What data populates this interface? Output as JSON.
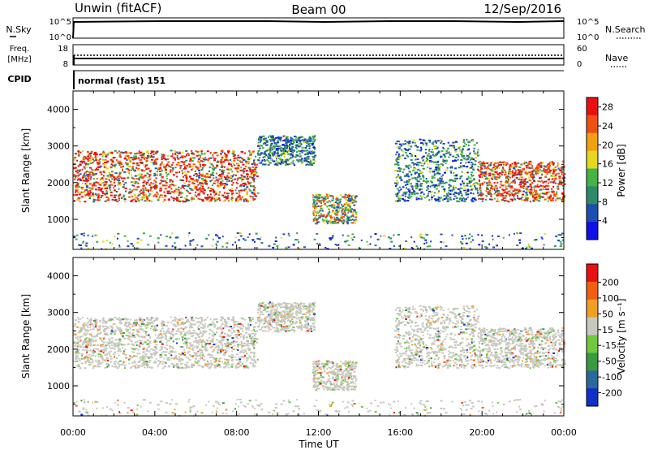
{
  "header": {
    "station": "Unwin (fitACF)",
    "beam": "Beam 00",
    "date": "12/Sep/2016"
  },
  "summary_panels": {
    "nsky": {
      "left_label": "N.Sky",
      "right_label": "N.Search",
      "ticks_left": [
        "10^5",
        "10^0"
      ],
      "ticks_right": [
        "10^5",
        "10^0"
      ]
    },
    "freq": {
      "left_label_1": "Freq.",
      "left_label_2": "[MHz]",
      "right_label": "Nave",
      "ticks_left": [
        "18",
        "8"
      ],
      "ticks_right": [
        "60",
        "0"
      ]
    },
    "cpid": {
      "left_label": "CPID",
      "text": "normal (fast) 151"
    }
  },
  "x_axis": {
    "label": "Time UT",
    "ticks": [
      "00:00",
      "04:00",
      "08:00",
      "12:00",
      "16:00",
      "20:00",
      "00:00"
    ]
  },
  "chart_data": [
    {
      "type": "heatmap",
      "name": "power",
      "x_unit": "hours UT",
      "xlim": [
        0,
        24
      ],
      "ylabel": "Slant Range [km]",
      "ylim": [
        180,
        4500
      ],
      "yticks": [
        "1000",
        "2000",
        "3000",
        "4000"
      ],
      "colorbar": {
        "label": "Power [dB]",
        "ticks": [
          "4",
          "8",
          "12",
          "16",
          "20",
          "24",
          "28"
        ],
        "range": [
          0,
          30
        ],
        "colors": [
          "#1010e8",
          "#1d4fb0",
          "#2e8a6a",
          "#44b445",
          "#e2d820",
          "#f0a010",
          "#f05010",
          "#e81010"
        ]
      },
      "scatter_regions": [
        {
          "t": [
            0.0,
            9.0
          ],
          "range": [
            1500,
            2900
          ],
          "level": "high"
        },
        {
          "t": [
            9.0,
            11.8
          ],
          "range": [
            2500,
            3300
          ],
          "level": "low"
        },
        {
          "t": [
            11.7,
            13.8
          ],
          "range": [
            900,
            1700
          ],
          "level": "mid"
        },
        {
          "t": [
            15.7,
            19.8
          ],
          "range": [
            1500,
            3200
          ],
          "level": "low"
        },
        {
          "t": [
            19.8,
            24.0
          ],
          "range": [
            1500,
            2600
          ],
          "level": "high"
        }
      ]
    },
    {
      "type": "heatmap",
      "name": "velocity",
      "x_unit": "hours UT",
      "xlim": [
        0,
        24
      ],
      "ylabel": "Slant Range [km]",
      "ylim": [
        180,
        4500
      ],
      "yticks": [
        "1000",
        "2000",
        "3000",
        "4000"
      ],
      "colorbar": {
        "label": "Velocity [m s⁻¹]",
        "ticks": [
          "200",
          "100",
          "50",
          "15",
          "-15",
          "-50",
          "-100",
          "-200"
        ],
        "range": [
          -250,
          250
        ],
        "colors": [
          "#1030c8",
          "#2a6a9a",
          "#3a9a40",
          "#70c840",
          "#c8c8c0",
          "#f0a020",
          "#f06010",
          "#e81010"
        ]
      },
      "dominant_value_range": [
        -15,
        15
      ]
    }
  ]
}
